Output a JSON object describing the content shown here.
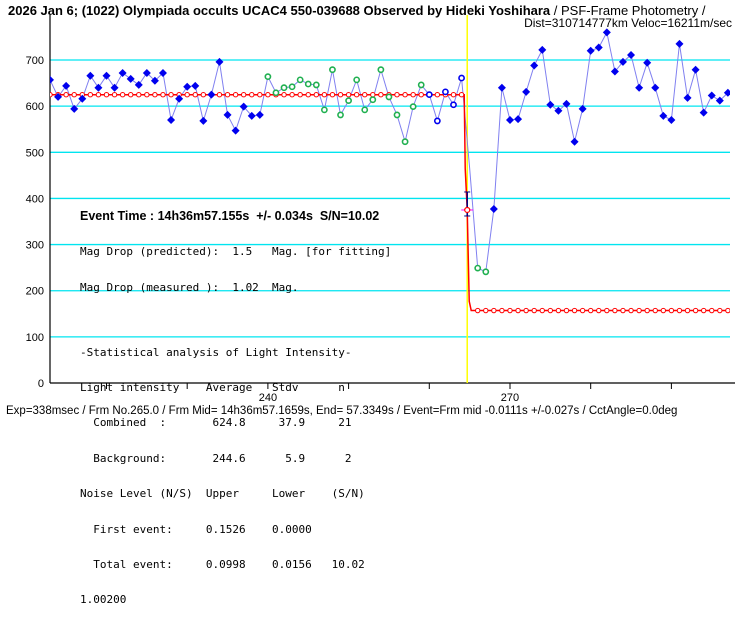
{
  "header": {
    "title": "2026 Jan 6; (1022) Olympiada occults UCAC4 550-039688 Observed by Hideki Yoshihara",
    "method": " / PSF-Frame Photometry /",
    "dist_veloc": "Dist=310714777km Veloc=16211m/sec"
  },
  "stats": {
    "event_time": "Event Time : 14h36m57.155s  +/- 0.034s  S/N=10.02",
    "lines_a": [
      "Mag Drop (predicted):  1.5   Mag. [for fitting]",
      "Mag Drop (measured ):  1.02  Mag."
    ],
    "lines_b": [
      "-Statistical analysis of Light Intensity-",
      "Light intensity    Average   Stdv      n",
      "  Combined  :       624.8     37.9     21",
      "  Background:       244.6      5.9      2",
      "Noise Level (N/S)  Upper     Lower    (S/N)",
      "  First event:     0.1526    0.0000",
      "  Total event:     0.0998    0.0156   10.02",
      "1.00200"
    ]
  },
  "footer": "Exp=338msec / Frm No.265.0 / Frm Mid= 14h36m57.1659s,  End= 57.3349s / Event=Frm mid -0.0111s +/-0.027s / CctAngle=0.0deg",
  "chart_data": {
    "type": "line",
    "xlim": [
      213,
      297.5
    ],
    "ylim": [
      0,
      760
    ],
    "xticks": [
      220,
      230,
      240,
      250,
      260,
      270,
      280,
      290
    ],
    "xtick_labels": [
      {
        "value": 240,
        "label": "240"
      },
      {
        "value": 270,
        "label": "270"
      }
    ],
    "yticks": [
      0,
      100,
      200,
      300,
      400,
      500,
      600,
      700
    ],
    "ytick_labels": [
      "0",
      "100",
      "200",
      "300",
      "400",
      "500",
      "600",
      "700"
    ],
    "grid": "horizontal",
    "first_frame": 213,
    "observed": [
      657,
      620,
      644,
      594,
      616,
      666,
      640,
      666,
      640,
      672,
      659,
      646,
      672,
      655,
      672,
      570,
      616,
      642,
      644,
      568,
      625,
      696,
      581,
      547,
      599,
      579,
      581,
      664,
      629,
      640,
      642,
      657,
      648,
      646,
      592,
      679,
      581,
      612,
      657,
      592,
      614,
      679,
      620,
      581,
      523,
      599,
      646,
      625,
      568,
      631,
      603,
      661,
      466,
      249,
      241,
      377,
      640,
      570,
      572,
      631,
      688,
      722,
      603,
      590,
      605,
      523,
      594,
      720,
      727,
      760,
      675,
      696,
      711,
      640,
      694,
      640,
      579,
      570,
      735,
      618,
      679,
      586,
      623,
      612,
      629
    ],
    "point_styles": {
      "filled_blue": [
        0,
        26
      ],
      "open_green": [
        27,
        46
      ],
      "open_blue": [
        47,
        51
      ],
      "open_green_2": [
        53,
        54
      ],
      "filled_blue_2": [
        55,
        84
      ]
    },
    "model": {
      "upper": 624.8,
      "lower": 157,
      "event_frame": 264.7
    },
    "event_marker": {
      "frame": 264.7,
      "value": 375,
      "error_frames": 0.1
    },
    "colors": {
      "grid": "#00e5f0",
      "observed_line": "#8080f0",
      "blue": "#0000ee",
      "green": "#20b050",
      "model": "#ff0000",
      "event_line": "#ffff00",
      "marker": "#ff00ff"
    }
  }
}
